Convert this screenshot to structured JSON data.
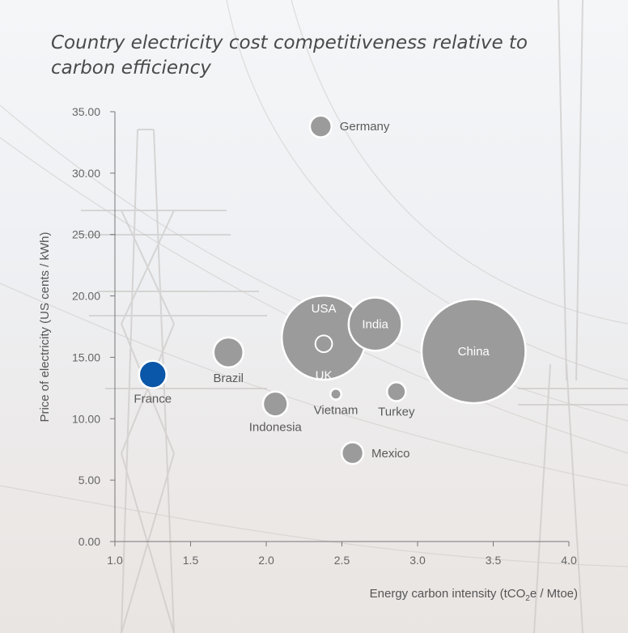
{
  "chart_data": {
    "type": "scatter",
    "subtype": "bubble",
    "title": "Country electricity cost competitiveness relative to carbon efficiency",
    "xlabel": "Energy carbon intensity (tCO2e / Mtoe)",
    "xlabel_parts": {
      "before": "Energy carbon intensity (tCO",
      "sub": "2",
      "after": "e / Mtoe)"
    },
    "ylabel": "Price of electricity (US cents / kWh)",
    "xlim": [
      1.0,
      4.0
    ],
    "ylim": [
      0,
      35
    ],
    "x_ticks": [
      "1.0",
      "1.5",
      "2.0",
      "2.5",
      "3.0",
      "3.5",
      "4.0"
    ],
    "x_tick_values": [
      1.0,
      1.5,
      2.0,
      2.5,
      3.0,
      3.5,
      4.0
    ],
    "y_ticks": [
      "0.00",
      "5.00",
      "10.00",
      "15.00",
      "20.00",
      "25.00",
      "30.00",
      "35.00"
    ],
    "y_tick_values": [
      0,
      5,
      10,
      15,
      20,
      25,
      30,
      35
    ],
    "grid": false,
    "colors": {
      "default": "#9b9b9b",
      "highlight": "#0a56a8",
      "axis": "#777777"
    },
    "points": [
      {
        "name": "Germany",
        "x": 2.36,
        "y": 33.8,
        "size": 1.0,
        "label_pos": "right"
      },
      {
        "name": "USA",
        "x": 2.38,
        "y": 16.6,
        "size": 15.0,
        "label_pos": "inside-top"
      },
      {
        "name": "UK",
        "x": 2.38,
        "y": 16.1,
        "size": 0.6,
        "label_pos": "inside-bottom",
        "style": "outline"
      },
      {
        "name": "India",
        "x": 2.72,
        "y": 17.7,
        "size": 6.0,
        "label_pos": "inside"
      },
      {
        "name": "China",
        "x": 3.37,
        "y": 15.5,
        "size": 23.0,
        "label_pos": "inside"
      },
      {
        "name": "Brazil",
        "x": 1.75,
        "y": 15.4,
        "size": 1.9,
        "label_pos": "below"
      },
      {
        "name": "France",
        "x": 1.25,
        "y": 13.6,
        "size": 1.6,
        "label_pos": "below",
        "highlight": true
      },
      {
        "name": "Indonesia",
        "x": 2.06,
        "y": 11.2,
        "size": 1.3,
        "label_pos": "below"
      },
      {
        "name": "Vietnam",
        "x": 2.46,
        "y": 12.0,
        "size": 0.25,
        "label_pos": "below"
      },
      {
        "name": "Turkey",
        "x": 2.86,
        "y": 12.2,
        "size": 0.75,
        "label_pos": "below"
      },
      {
        "name": "Mexico",
        "x": 2.57,
        "y": 7.2,
        "size": 1.0,
        "label_pos": "right"
      }
    ]
  }
}
